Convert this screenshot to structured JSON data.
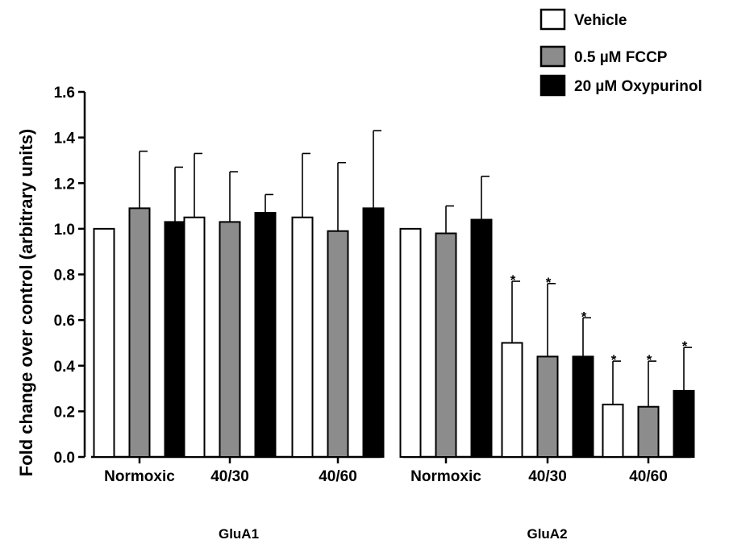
{
  "chart_data": {
    "type": "bar",
    "ylabel": "Fold change over control (arbitrary units)",
    "ylim": [
      0,
      1.6
    ],
    "yticks": [
      "0.0",
      "0.2",
      "0.4",
      "0.6",
      "0.8",
      "1.0",
      "1.2",
      "1.4",
      "1.6"
    ],
    "grid": false,
    "legend_position": "top-right",
    "series": [
      {
        "name": "Vehicle",
        "color": "#ffffff"
      },
      {
        "name": "0.5 µM FCCP",
        "color": "#8c8c8c"
      },
      {
        "name": "20 µM Oxypurinol",
        "color": "#000000"
      }
    ],
    "panels": [
      {
        "group_label": "GluA1",
        "categories": [
          {
            "label": "Normoxic",
            "values": [
              1.0,
              1.09,
              1.03
            ],
            "errors": [
              0.0,
              0.25,
              0.24
            ],
            "significant": [
              false,
              false,
              false
            ]
          },
          {
            "label": "40/30",
            "values": [
              1.05,
              1.03,
              1.07
            ],
            "errors": [
              0.28,
              0.22,
              0.08
            ],
            "significant": [
              false,
              false,
              false
            ]
          },
          {
            "label": "40/60",
            "values": [
              1.05,
              0.99,
              1.09
            ],
            "errors": [
              0.28,
              0.3,
              0.34
            ],
            "significant": [
              false,
              false,
              false
            ]
          }
        ]
      },
      {
        "group_label": "GluA2",
        "categories": [
          {
            "label": "Normoxic",
            "values": [
              1.0,
              0.98,
              1.04
            ],
            "errors": [
              0.0,
              0.12,
              0.19
            ],
            "significant": [
              false,
              false,
              false
            ]
          },
          {
            "label": "40/30",
            "values": [
              0.5,
              0.44,
              0.44
            ],
            "errors": [
              0.27,
              0.32,
              0.17
            ],
            "significant": [
              true,
              true,
              true
            ]
          },
          {
            "label": "40/60",
            "values": [
              0.23,
              0.22,
              0.29
            ],
            "errors": [
              0.19,
              0.2,
              0.19
            ],
            "significant": [
              true,
              true,
              true
            ]
          }
        ]
      }
    ],
    "significance_marker": "*"
  }
}
